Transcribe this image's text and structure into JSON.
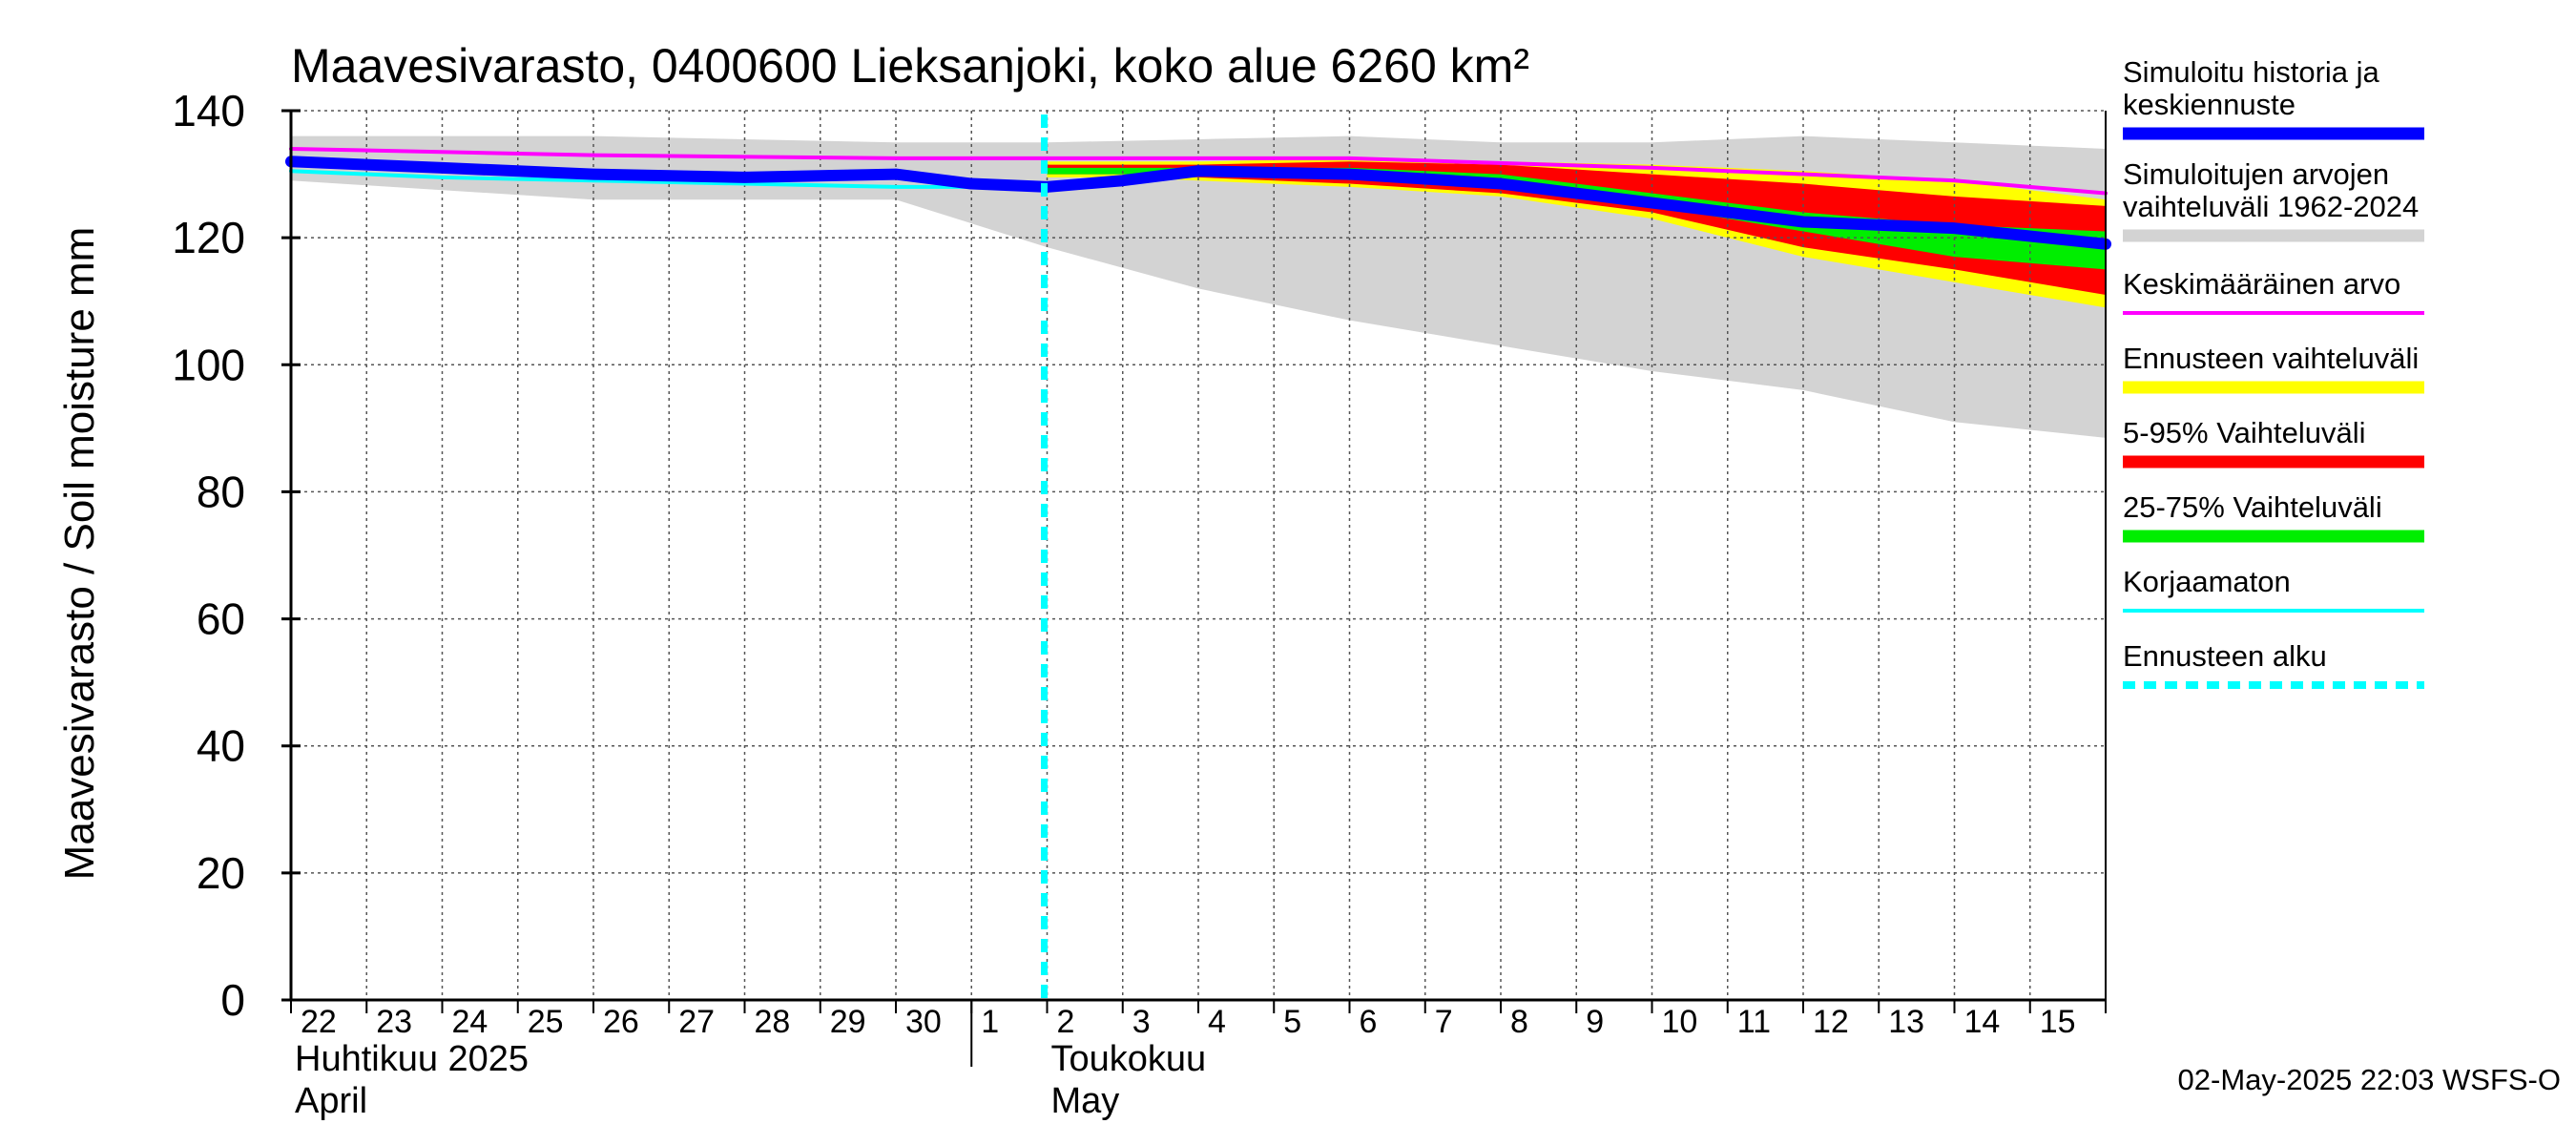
{
  "chart_data": {
    "type": "area",
    "title": "Maavesivarasto, 0400600 Lieksanjoki, koko alue 6260 km²",
    "ylabel": "Maavesivarasto / Soil moisture   mm",
    "ylim": [
      0,
      140
    ],
    "yticks": [
      0,
      20,
      40,
      60,
      80,
      100,
      120,
      140
    ],
    "xlim": [
      0,
      24
    ],
    "day_labels": [
      "22",
      "23",
      "24",
      "25",
      "26",
      "27",
      "28",
      "29",
      "30",
      "1",
      "2",
      "3",
      "4",
      "5",
      "6",
      "7",
      "8",
      "9",
      "10",
      "11",
      "12",
      "13",
      "14",
      "15"
    ],
    "month_labels": [
      {
        "line1": "Huhtikuu  2025",
        "line2": "April",
        "day_index": 0
      },
      {
        "line1": "Toukokuu",
        "line2": "May",
        "day_index": 10
      }
    ],
    "month_divider_day": 9,
    "forecast_start_day": 10,
    "grid": true,
    "series": [
      {
        "name": "Simuloitujen arvojen vaihteluväli 1962-2024",
        "kind": "band",
        "color": "#d3d3d3",
        "x": [
          0,
          2,
          4,
          6,
          8,
          10,
          12,
          14,
          16,
          18,
          20,
          22,
          24
        ],
        "upper": [
          136,
          136,
          136,
          135.5,
          135,
          135,
          135.5,
          136,
          135,
          135,
          136,
          135,
          134
        ],
        "lower": [
          129,
          127.5,
          126,
          126,
          126,
          118.5,
          112,
          107,
          103,
          99,
          96,
          91,
          88.5
        ]
      },
      {
        "name": "Ennusteen vaihteluväli",
        "kind": "band",
        "color": "#ffff00",
        "x": [
          10,
          11,
          12,
          14,
          16,
          18,
          20,
          22,
          24
        ],
        "upper": [
          132,
          132,
          132,
          132.5,
          132,
          131.5,
          130.5,
          129,
          126
        ],
        "lower": [
          129.5,
          129.5,
          129,
          128,
          126.5,
          123,
          117,
          113,
          109
        ]
      },
      {
        "name": "5-95% Vaihteluväli",
        "kind": "band",
        "color": "#ff0000",
        "x": [
          10,
          11,
          12,
          14,
          16,
          18,
          20,
          22,
          24
        ],
        "upper": [
          131.5,
          131.5,
          131.5,
          132,
          131.5,
          130,
          128.5,
          126.5,
          125
        ],
        "lower": [
          130,
          130,
          129.5,
          128.5,
          127,
          124,
          118.5,
          115,
          111
        ]
      },
      {
        "name": "25-75% Vaihteluväli",
        "kind": "band",
        "color": "#00ee00",
        "x": [
          10,
          11,
          12,
          14,
          16,
          18,
          20,
          22,
          24
        ],
        "upper": [
          131,
          131,
          131,
          131,
          130,
          127,
          124,
          122,
          121
        ],
        "lower": [
          130,
          130,
          130,
          129.5,
          128,
          125,
          121,
          117,
          115
        ]
      },
      {
        "name": "Keskimääräinen arvo",
        "kind": "line",
        "color": "#ff00ff",
        "width": 4,
        "x": [
          0,
          4,
          8,
          10,
          14,
          18,
          22,
          24
        ],
        "y": [
          134,
          133,
          132.5,
          132.5,
          132.5,
          131,
          129,
          127
        ]
      },
      {
        "name": "Korjaamaton",
        "kind": "line",
        "color": "#00ffff",
        "width": 4,
        "x": [
          0,
          2,
          4,
          6,
          8,
          10,
          10.5,
          11,
          12
        ],
        "y": [
          130.5,
          129.5,
          129,
          128.5,
          128,
          128,
          128.5,
          129.5,
          130
        ]
      },
      {
        "name": "Simuloitu historia ja keskiennuste",
        "kind": "line",
        "color": "#0000ff",
        "width": 12,
        "x": [
          0,
          2,
          4,
          6,
          8,
          9,
          10,
          10.5,
          11,
          12,
          14,
          16,
          18,
          20,
          22,
          24
        ],
        "y": [
          132,
          131,
          130,
          129.5,
          130,
          128.5,
          128,
          128.5,
          129,
          130.5,
          130,
          128.5,
          125.5,
          122.5,
          121.5,
          119
        ]
      }
    ],
    "legend": [
      {
        "label": "Simuloitu historia ja\nkeskiennuste",
        "color": "#0000ff",
        "style": "solid"
      },
      {
        "label": "Simuloitujen arvojen\nvaihteluväli 1962-2024",
        "color": "#d3d3d3",
        "style": "solid"
      },
      {
        "label": "Keskimääräinen arvo",
        "color": "#ff00ff",
        "style": "thin"
      },
      {
        "label": "Ennusteen vaihteluväli",
        "color": "#ffff00",
        "style": "solid"
      },
      {
        "label": "5-95% Vaihteluväli",
        "color": "#ff0000",
        "style": "solid"
      },
      {
        "label": "25-75% Vaihteluväli",
        "color": "#00ee00",
        "style": "solid"
      },
      {
        "label": "Korjaamaton",
        "color": "#00ffff",
        "style": "thin"
      },
      {
        "label": "Ennusteen alku",
        "color": "#00ffff",
        "style": "dashed"
      }
    ],
    "legend_position": "right",
    "footer": "02-May-2025 22:03 WSFS-O"
  }
}
